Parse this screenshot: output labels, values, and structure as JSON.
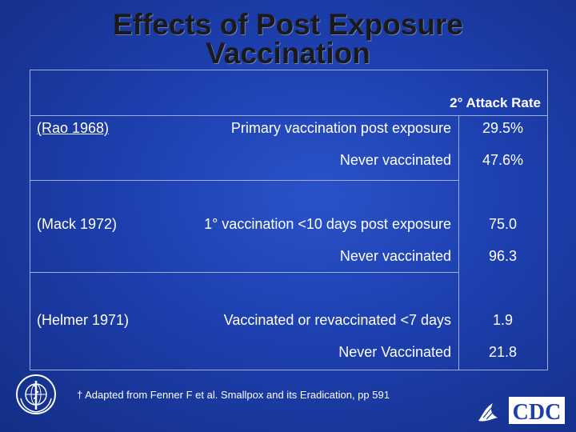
{
  "title": {
    "line1": "Effects of Post Exposure",
    "line2": "Vaccination"
  },
  "table": {
    "column_header": "2° Attack Rate",
    "groups": [
      {
        "study": "(Rao 1968)",
        "rows": [
          {
            "description": "Primary vaccination post exposure",
            "value": "29.5%"
          },
          {
            "description": "Never vaccinated",
            "value": "47.6%"
          }
        ]
      },
      {
        "study": "(Mack 1972)",
        "rows": [
          {
            "description": "1° vaccination <10 days post exposure",
            "value": "75.0"
          },
          {
            "description": "Never vaccinated",
            "value": "96.3"
          }
        ]
      },
      {
        "study": "(Helmer 1971)",
        "rows": [
          {
            "description": "Vaccinated or revaccinated <7 days",
            "value": "1.9"
          },
          {
            "description": "Never Vaccinated",
            "value": "21.8"
          }
        ]
      }
    ]
  },
  "footnote": "† Adapted from Fenner F et al. Smallpox and its Eradication, pp 591",
  "logos": {
    "left": "who-emblem-icon",
    "right_text": "CDC"
  },
  "colors": {
    "background": "#1d3fae",
    "title": "#1a1a1a",
    "text": "#ffffff",
    "grid": "#9fb0e0"
  }
}
